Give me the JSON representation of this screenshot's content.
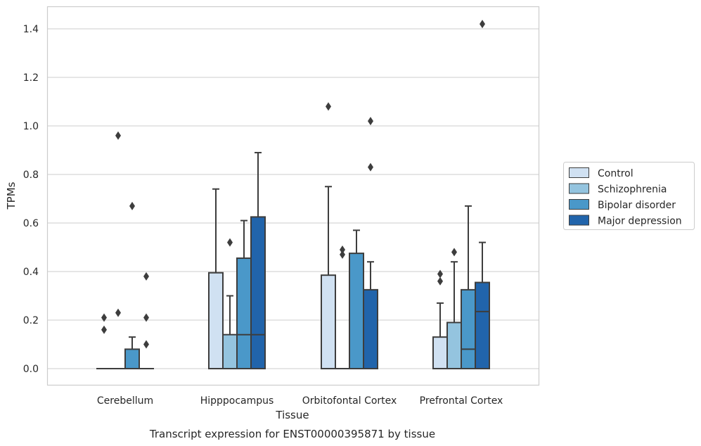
{
  "chart_data": {
    "type": "box",
    "caption": "Transcript expression for ENST00000395871 by tissue",
    "xlabel": "Tissue",
    "ylabel": "TPMs",
    "ylim": [
      -0.07,
      1.49
    ],
    "yticks": [
      0.0,
      0.2,
      0.4,
      0.6,
      0.8,
      1.0,
      1.2,
      1.4
    ],
    "ytick_labels": [
      "0.0",
      "0.2",
      "0.4",
      "0.6",
      "0.8",
      "1.0",
      "1.2",
      "1.4"
    ],
    "grid": true,
    "legend_position": "right",
    "categories": [
      "Cerebellum",
      "Hipppocampus",
      "Orbitofontal Cortex",
      "Prefrontal Cortex"
    ],
    "series": [
      {
        "name": "Control",
        "color": "#d0e1f2",
        "boxes": [
          {
            "q1": 0,
            "median": 0,
            "q3": 0,
            "whisker_low": 0,
            "whisker_high": 0,
            "outliers": [
              0.16,
              0.21
            ]
          },
          {
            "q1": 0,
            "median": 0,
            "q3": 0.395,
            "whisker_low": 0,
            "whisker_high": 0.74,
            "outliers": []
          },
          {
            "q1": 0,
            "median": 0,
            "q3": 0.385,
            "whisker_low": 0,
            "whisker_high": 0.75,
            "outliers": [
              1.08
            ]
          },
          {
            "q1": 0,
            "median": 0,
            "q3": 0.13,
            "whisker_low": 0,
            "whisker_high": 0.27,
            "outliers": [
              0.36,
              0.39
            ]
          }
        ]
      },
      {
        "name": "Schizophrenia",
        "color": "#94c4df",
        "boxes": [
          {
            "q1": 0,
            "median": 0,
            "q3": 0,
            "whisker_low": 0,
            "whisker_high": 0,
            "outliers": [
              0.23,
              0.96
            ]
          },
          {
            "q1": 0,
            "median": 0,
            "q3": 0.14,
            "whisker_low": 0,
            "whisker_high": 0.3,
            "outliers": [
              0.52
            ]
          },
          {
            "q1": 0,
            "median": 0,
            "q3": 0,
            "whisker_low": 0,
            "whisker_high": 0,
            "outliers": [
              0.47,
              0.49
            ]
          },
          {
            "q1": 0,
            "median": 0,
            "q3": 0.19,
            "whisker_low": 0,
            "whisker_high": 0.44,
            "outliers": [
              0.48
            ]
          }
        ]
      },
      {
        "name": "Bipolar disorder",
        "color": "#4a98c9",
        "boxes": [
          {
            "q1": 0,
            "median": 0,
            "q3": 0.08,
            "whisker_low": 0,
            "whisker_high": 0.13,
            "outliers": [
              0.67
            ]
          },
          {
            "q1": 0,
            "median": 0.14,
            "q3": 0.455,
            "whisker_low": 0,
            "whisker_high": 0.61,
            "outliers": []
          },
          {
            "q1": 0,
            "median": 0,
            "q3": 0.475,
            "whisker_low": 0,
            "whisker_high": 0.57,
            "outliers": []
          },
          {
            "q1": 0,
            "median": 0.08,
            "q3": 0.325,
            "whisker_low": 0,
            "whisker_high": 0.67,
            "outliers": []
          }
        ]
      },
      {
        "name": "Major depression",
        "color": "#2164ab",
        "boxes": [
          {
            "q1": 0,
            "median": 0,
            "q3": 0,
            "whisker_low": 0,
            "whisker_high": 0,
            "outliers": [
              0.1,
              0.21,
              0.38
            ]
          },
          {
            "q1": 0,
            "median": 0.14,
            "q3": 0.625,
            "whisker_low": 0,
            "whisker_high": 0.89,
            "outliers": []
          },
          {
            "q1": 0,
            "median": 0,
            "q3": 0.325,
            "whisker_low": 0,
            "whisker_high": 0.44,
            "outliers": [
              0.83,
              1.02
            ]
          },
          {
            "q1": 0,
            "median": 0.235,
            "q3": 0.355,
            "whisker_low": 0,
            "whisker_high": 0.52,
            "outliers": [
              1.42
            ]
          }
        ]
      }
    ]
  }
}
